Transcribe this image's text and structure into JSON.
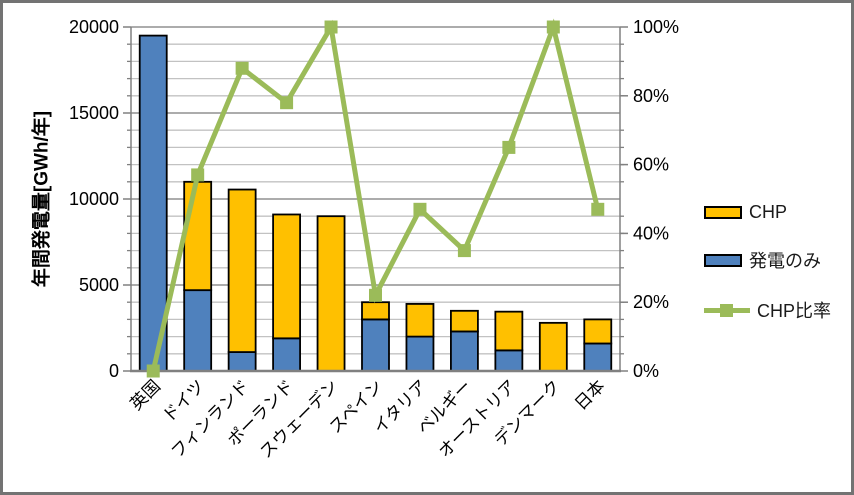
{
  "chart_data": {
    "type": "bar",
    "subtype": "stacked-column-with-line-on-secondary-axis",
    "title": "",
    "categories": [
      "英国",
      "ドイツ",
      "フィンランド",
      "ポーランド",
      "スウェーデン",
      "スペイン",
      "イタリア",
      "ベルギー",
      "オーストリア",
      "デンマーク",
      "日本"
    ],
    "series": [
      {
        "name": "発電のみ",
        "type": "bar",
        "stack": "bottom",
        "axis": "left",
        "color": "#4F81BD",
        "values": [
          19500,
          4700,
          1100,
          1900,
          0,
          3000,
          2000,
          2300,
          1200,
          0,
          1600
        ]
      },
      {
        "name": "CHP",
        "type": "bar",
        "stack": "top",
        "axis": "left",
        "color": "#FFC000",
        "values": [
          0,
          6300,
          9450,
          7200,
          9000,
          1000,
          1900,
          1200,
          2250,
          2800,
          1400
        ]
      },
      {
        "name": "CHP比率",
        "type": "line",
        "axis": "right",
        "color": "#9BBB59",
        "marker": "square",
        "values": [
          0,
          57,
          88,
          78,
          100,
          22,
          47,
          35,
          65,
          100,
          47
        ]
      }
    ],
    "ylabel": "年間発電量[GWh/年]",
    "ylim_left": [
      0,
      20000
    ],
    "yticks_left": [
      "0",
      "5000",
      "10000",
      "15000",
      "20000"
    ],
    "ylim_right": [
      0,
      100
    ],
    "yticks_right": [
      "0%",
      "20%",
      "40%",
      "60%",
      "80%",
      "100%"
    ],
    "gridlines": {
      "minor_step": 1000,
      "major_step": 5000,
      "orientation": "horizontal"
    },
    "legend_position": "middle-right",
    "x_tick_label_rotation_deg": 45
  },
  "legend": {
    "items": [
      {
        "label": "CHP",
        "swatch": "yellow-box"
      },
      {
        "label": "発電のみ",
        "swatch": "blue-box"
      },
      {
        "label": "CHP比率",
        "swatch": "green-line-with-square-marker"
      }
    ]
  },
  "colors": {
    "bar_chp": "#FFC000",
    "bar_generation_only": "#4F81BD",
    "line_chp_ratio": "#9BBB59",
    "bar_border": "#000000",
    "axis": "#808080",
    "grid_major": "#909090",
    "grid_minor": "#C2C2C2",
    "frame_border": "#737373",
    "background": "#FFFFFF",
    "text": "#000000"
  }
}
